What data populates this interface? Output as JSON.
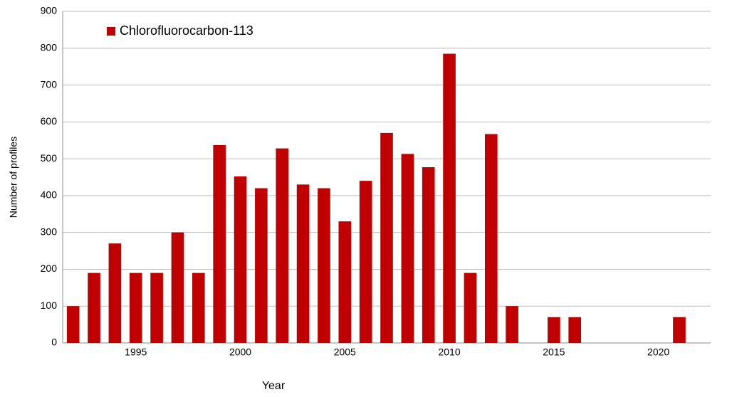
{
  "chart_data": {
    "type": "bar",
    "y_label": "Number of profiles",
    "x_label": "Year",
    "categories": [
      null,
      null,
      null,
      "1995",
      null,
      null,
      null,
      null,
      "2000",
      null,
      null,
      null,
      null,
      "2005",
      null,
      null,
      null,
      null,
      "2010",
      null,
      null,
      null,
      null,
      "2015",
      null,
      null,
      null,
      null,
      "2020",
      null,
      null
    ],
    "series": [
      {
        "name": "Chlorofluorocarbon-113",
        "color": "#c00000",
        "values": [
          100,
          190,
          270,
          190,
          190,
          300,
          190,
          537,
          452,
          420,
          528,
          430,
          420,
          330,
          440,
          570,
          513,
          477,
          785,
          190,
          567,
          100,
          0,
          70,
          70,
          0,
          0,
          0,
          0,
          70,
          0
        ]
      }
    ],
    "ylim": [
      0,
      900
    ],
    "yticks": [
      0,
      100,
      200,
      300,
      400,
      500,
      600,
      700,
      800,
      900
    ],
    "grid": true,
    "legend": "top-left"
  }
}
